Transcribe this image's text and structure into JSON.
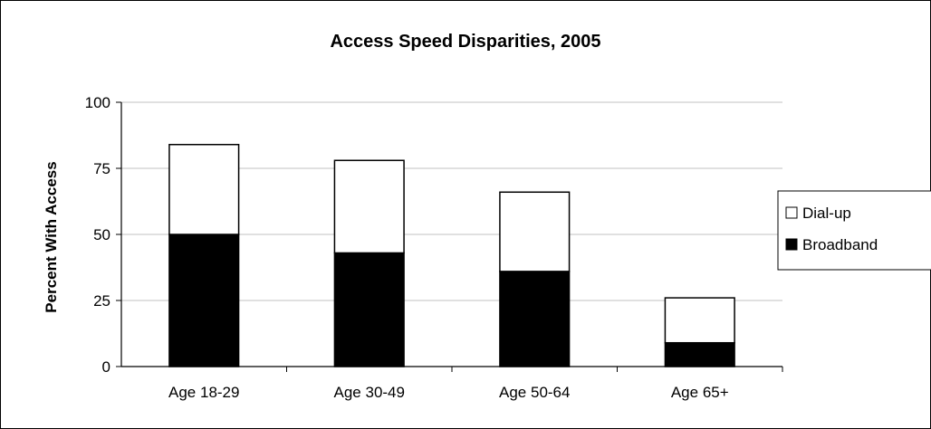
{
  "chart_data": {
    "type": "bar",
    "stacked": true,
    "title": "Access Speed Disparities, 2005",
    "xlabel": "",
    "ylabel": "Percent With Access",
    "ylim": [
      0,
      100
    ],
    "yticks": [
      "0",
      "25",
      "50",
      "75",
      "100"
    ],
    "grid": true,
    "legend_position": "right",
    "categories": [
      "Age 18-29",
      "Age 30-49",
      "Age 50-64",
      "Age 65+"
    ],
    "series": [
      {
        "name": "Broadband",
        "values": [
          50,
          43,
          36,
          9
        ],
        "color": "#000000"
      },
      {
        "name": "Dial-up",
        "values": [
          34,
          35,
          30,
          17
        ],
        "color": "#ffffff"
      }
    ],
    "legend": [
      {
        "name": "Dial-up",
        "color": "#ffffff"
      },
      {
        "name": "Broadband",
        "color": "#000000"
      }
    ]
  }
}
